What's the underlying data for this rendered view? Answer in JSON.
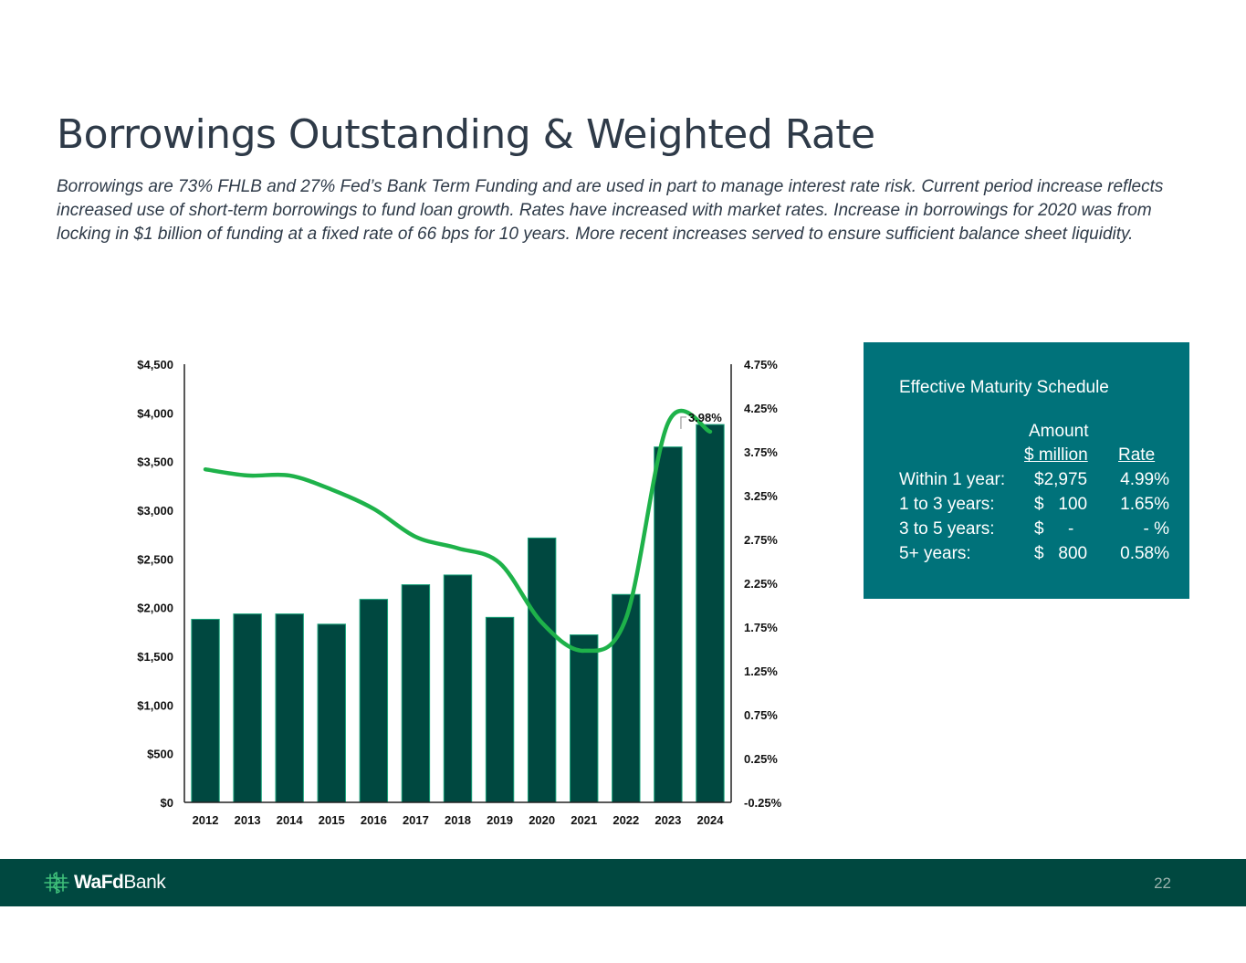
{
  "slide": {
    "title": "Borrowings Outstanding & Weighted Rate",
    "subtitle": "Borrowings are 73% FHLB and 27%  Fed’s Bank Term Funding and are used in part to manage interest rate risk.  Current period increase reflects increased use of short-term borrowings to fund loan growth.  Rates have increased with market rates.  Increase in borrowings for 2020 was from locking in $1 billion of funding at a fixed rate of 66 bps for 10 years. More recent increases served to ensure sufficient balance sheet liquidity.",
    "page_number": "22"
  },
  "chart_data": {
    "type": "bar",
    "categories": [
      "2012",
      "2013",
      "2014",
      "2015",
      "2016",
      "2017",
      "2018",
      "2019",
      "2020",
      "2021",
      "2022",
      "2023",
      "2024"
    ],
    "series": [
      {
        "name": "Borrowings Outstanding ($ million)",
        "kind": "bar",
        "axis": "left",
        "color": "#004840",
        "values": [
          1880,
          1935,
          1935,
          1830,
          2085,
          2235,
          2335,
          1900,
          2715,
          1720,
          2135,
          3650,
          3880
        ]
      },
      {
        "name": "Weighted Rate (%)",
        "kind": "line",
        "axis": "right",
        "color": "#1eb24a",
        "values": [
          3.55,
          3.48,
          3.48,
          3.32,
          3.1,
          2.78,
          2.65,
          2.48,
          1.8,
          1.48,
          1.85,
          4.08,
          3.98
        ]
      }
    ],
    "y_left": {
      "min": 0,
      "max": 4500,
      "step": 500,
      "tick_labels": [
        "$0",
        "$500",
        "$1,000",
        "$1,500",
        "$2,000",
        "$2,500",
        "$3,000",
        "$3,500",
        "$4,000",
        "$4,500"
      ]
    },
    "y_right": {
      "min": -0.25,
      "max": 4.75,
      "step": 0.5,
      "tick_labels": [
        "-0.25%",
        "0.25%",
        "0.75%",
        "1.25%",
        "1.75%",
        "2.25%",
        "2.75%",
        "3.25%",
        "3.75%",
        "4.25%",
        "4.75%"
      ]
    },
    "annotation": "3.98%",
    "grid": false,
    "legend": "none"
  },
  "maturity": {
    "title": "Effective Maturity Schedule",
    "amount_header": "Amount",
    "million_header": "$ million",
    "rate_header": "Rate",
    "rows": [
      {
        "label": "Within 1 year:",
        "amount": "$2,975",
        "rate": "4.99%"
      },
      {
        "label": "1 to 3 years:",
        "amount": "$   100",
        "rate": "1.65%"
      },
      {
        "label": "3 to 5 years:",
        "amount": "$     -",
        "rate": "- %"
      },
      {
        "label": "5+ years:",
        "amount": "$   800",
        "rate": "0.58%"
      }
    ]
  },
  "brand": {
    "name_bold": "WaFd",
    "name_regular": "Bank",
    "footer_color": "#004840",
    "panel_color": "#00727a"
  }
}
